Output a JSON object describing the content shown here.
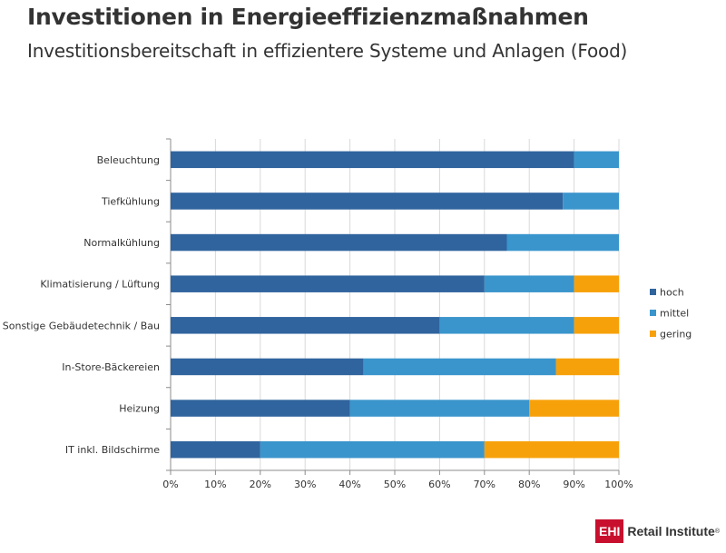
{
  "header": {
    "title": "Investitionen in Energieeffizienzmaßnahmen",
    "subtitle": "Investitionsbereitschaft in effizientere Systeme und Anlagen (Food)"
  },
  "chart_data": {
    "type": "bar",
    "orientation": "horizontal",
    "stacked": true,
    "percent": true,
    "categories": [
      "Beleuchtung",
      "Tiefkühlung",
      "Normalkühlung",
      "Klimatisierung / Lüftung",
      "Sonstige Gebäudetechnik / Bau",
      "In-Store-Bäckereien",
      "Heizung",
      "IT inkl. Bildschirme"
    ],
    "series": [
      {
        "name": "hoch",
        "color": "#30649e",
        "values": [
          90,
          87.5,
          75,
          70,
          60,
          43,
          40,
          20
        ]
      },
      {
        "name": "mittel",
        "color": "#3a95cc",
        "values": [
          10,
          12.5,
          25,
          20,
          30,
          43,
          40,
          50
        ]
      },
      {
        "name": "gering",
        "color": "#f7a10a",
        "values": [
          0,
          0,
          0,
          10,
          10,
          14,
          20,
          30
        ]
      }
    ],
    "xlim": [
      0,
      100
    ],
    "xticks": [
      "0%",
      "10%",
      "20%",
      "30%",
      "40%",
      "50%",
      "60%",
      "70%",
      "80%",
      "90%",
      "100%"
    ],
    "grid": true,
    "legend_position": "right"
  },
  "branding": {
    "logo_box": "EHI",
    "logo_text": "Retail Institute",
    "logo_mark": "®"
  }
}
